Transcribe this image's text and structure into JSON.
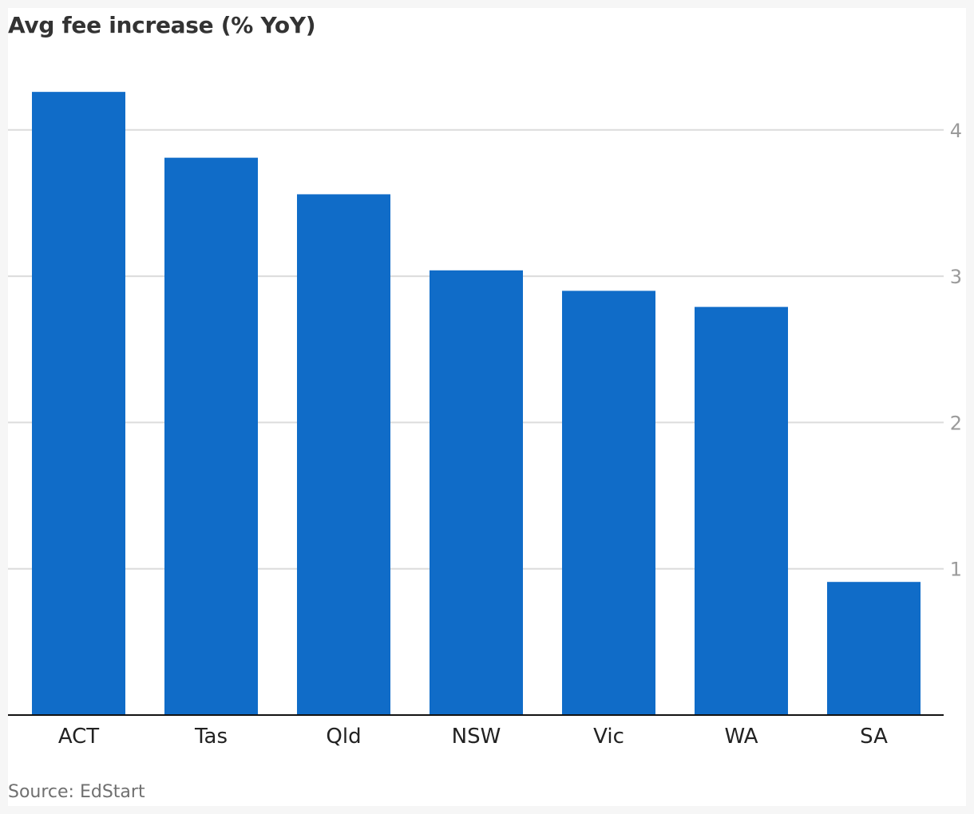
{
  "title": "Avg fee increase (% YoY)",
  "source": "Source: EdStart",
  "colors": {
    "bar": "#106cc8",
    "gridline": "#dcdcdc",
    "axis": "#121212",
    "tick_text": "#9a9a9a",
    "category_text": "#222222"
  },
  "chart_data": {
    "type": "bar",
    "title": "Avg fee increase (% YoY)",
    "categories": [
      "ACT",
      "Tas",
      "Qld",
      "NSW",
      "Vic",
      "WA",
      "SA"
    ],
    "values": [
      4.26,
      3.81,
      3.56,
      3.04,
      2.9,
      2.79,
      0.91
    ],
    "xlabel": "",
    "ylabel": "",
    "ylim": [
      0,
      4.5
    ],
    "yticks": [
      1,
      2,
      3,
      4
    ],
    "y_axis_side": "right",
    "grid": true,
    "legend": "none"
  }
}
